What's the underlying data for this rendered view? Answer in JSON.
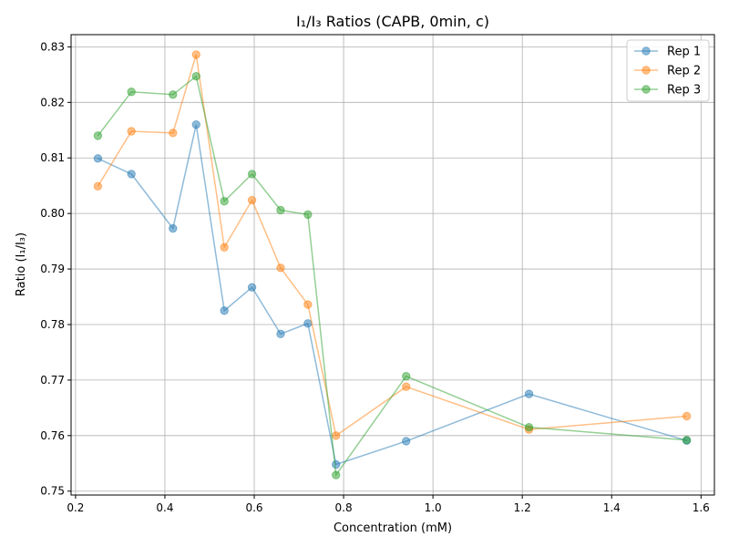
{
  "chart_data": {
    "type": "line",
    "title": "I₁/I₃ Ratios (CAPB, 0min, c)",
    "xlabel": "Concentration (mM)",
    "ylabel": "Ratio (I₁/I₃)",
    "xlim": [
      0.19,
      1.63
    ],
    "ylim": [
      0.7493,
      0.8322
    ],
    "xticks": [
      0.2,
      0.4,
      0.6,
      0.8,
      1.0,
      1.2,
      1.4,
      1.6
    ],
    "xtick_labels": [
      "0.2",
      "0.4",
      "0.6",
      "0.8",
      "1.0",
      "1.2",
      "1.4",
      "1.6"
    ],
    "yticks": [
      0.75,
      0.76,
      0.77,
      0.78,
      0.79,
      0.8,
      0.81,
      0.82,
      0.83
    ],
    "ytick_labels": [
      "0.75",
      "0.76",
      "0.77",
      "0.78",
      "0.79",
      "0.80",
      "0.81",
      "0.82",
      "0.83"
    ],
    "grid": true,
    "legend_position": "top-right",
    "x": [
      0.25,
      0.325,
      0.418,
      0.47,
      0.533,
      0.595,
      0.659,
      0.72,
      0.783,
      0.94,
      1.215,
      1.568
    ],
    "series": [
      {
        "name": "Rep 1",
        "color": "#1f77b4",
        "values": [
          0.8099,
          0.8071,
          0.7973,
          0.816,
          0.7825,
          0.7867,
          0.7783,
          0.7802,
          0.7548,
          0.759,
          0.7675,
          0.7591
        ]
      },
      {
        "name": "Rep 2",
        "color": "#ff7f0e",
        "values": [
          0.8049,
          0.8148,
          0.8145,
          0.8286,
          0.7939,
          0.8024,
          0.7902,
          0.7836,
          0.76,
          0.7688,
          0.7611,
          0.7635
        ]
      },
      {
        "name": "Rep 3",
        "color": "#2ca02c",
        "values": [
          0.814,
          0.8219,
          0.8214,
          0.8247,
          0.8022,
          0.8071,
          0.8006,
          0.7998,
          0.7529,
          0.7707,
          0.7615,
          0.7592
        ]
      }
    ]
  }
}
